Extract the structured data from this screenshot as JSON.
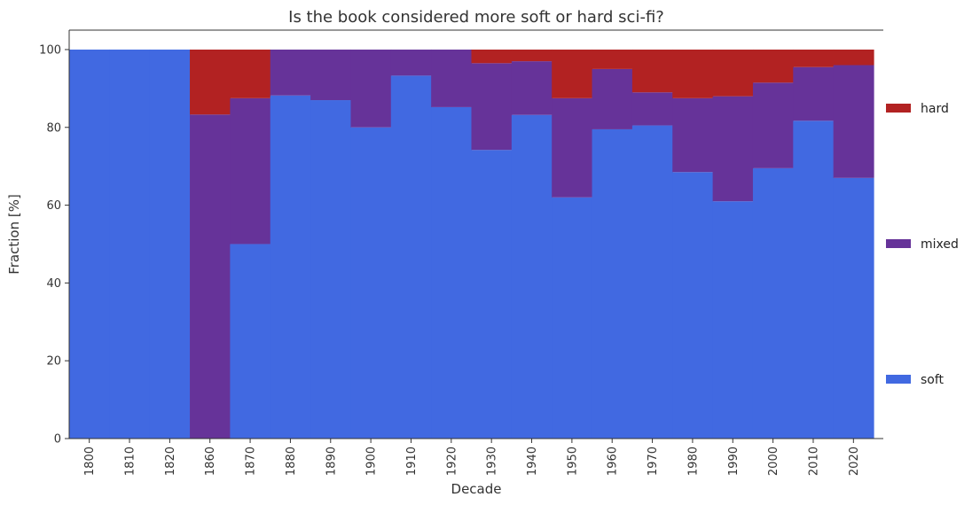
{
  "chart_data": {
    "type": "bar",
    "stacked": true,
    "title": "Is the book considered more soft or hard sci-fi?",
    "xlabel": "Decade",
    "ylabel": "Fraction [%]",
    "ylim": [
      0,
      105
    ],
    "yticks": [
      0,
      20,
      40,
      60,
      80,
      100
    ],
    "categories": [
      "1800",
      "1810",
      "1820",
      "1860",
      "1870",
      "1880",
      "1890",
      "1900",
      "1910",
      "1920",
      "1930",
      "1940",
      "1950",
      "1960",
      "1970",
      "1980",
      "1990",
      "2000",
      "2010",
      "2020"
    ],
    "series": [
      {
        "name": "soft",
        "color": "#4169e1",
        "values": [
          100,
          100,
          100,
          0,
          50,
          88.2,
          87,
          80,
          93.3,
          85.2,
          74.2,
          83.2,
          62,
          79.5,
          80.5,
          68.5,
          61,
          69.5,
          81.7,
          67
        ]
      },
      {
        "name": "mixed",
        "color": "#663399",
        "values": [
          0,
          0,
          0,
          83.3,
          37.5,
          11.8,
          13,
          20,
          6.7,
          14.8,
          22.3,
          13.8,
          25.5,
          15.5,
          8.5,
          19,
          27,
          22,
          13.8,
          29
        ]
      },
      {
        "name": "hard",
        "color": "#b22222",
        "values": [
          0,
          0,
          0,
          16.7,
          12.5,
          0,
          0,
          0,
          0,
          0,
          3.5,
          3,
          12.5,
          5,
          11,
          12.5,
          12,
          8.5,
          4.5,
          4
        ]
      }
    ],
    "legend": {
      "position": "right",
      "order": [
        "hard",
        "mixed",
        "soft"
      ]
    },
    "grid": false
  }
}
